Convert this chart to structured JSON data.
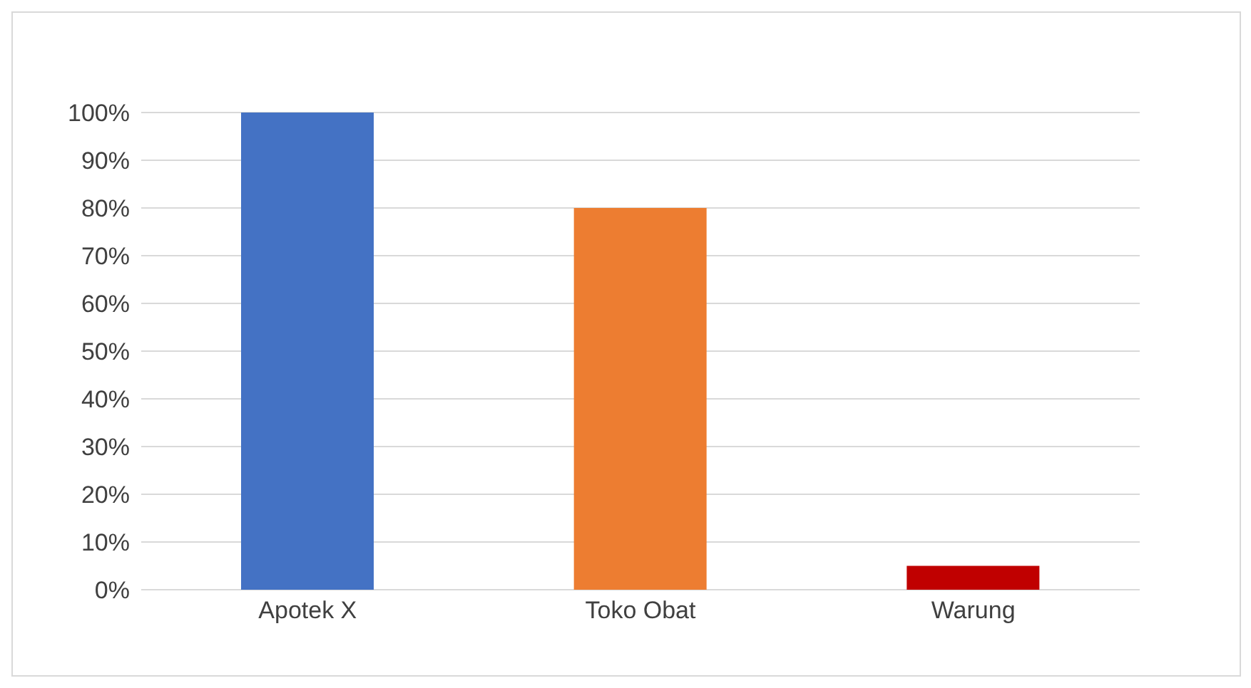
{
  "chart_data": {
    "type": "bar",
    "categories": [
      "Apotek X",
      "Toko Obat",
      "Warung"
    ],
    "values": [
      100,
      80,
      5
    ],
    "colors": [
      "#4472c4",
      "#ed7d31",
      "#c00000"
    ],
    "ylim": [
      0,
      100
    ],
    "yticks": [
      {
        "value": 0,
        "label": "0%"
      },
      {
        "value": 10,
        "label": "10%"
      },
      {
        "value": 20,
        "label": "20%"
      },
      {
        "value": 30,
        "label": "30%"
      },
      {
        "value": 40,
        "label": "40%"
      },
      {
        "value": 50,
        "label": "50%"
      },
      {
        "value": 60,
        "label": "60%"
      },
      {
        "value": 70,
        "label": "70%"
      },
      {
        "value": 80,
        "label": "80%"
      },
      {
        "value": 90,
        "label": "90%"
      },
      {
        "value": 100,
        "label": "100%"
      }
    ],
    "grid": "y"
  }
}
